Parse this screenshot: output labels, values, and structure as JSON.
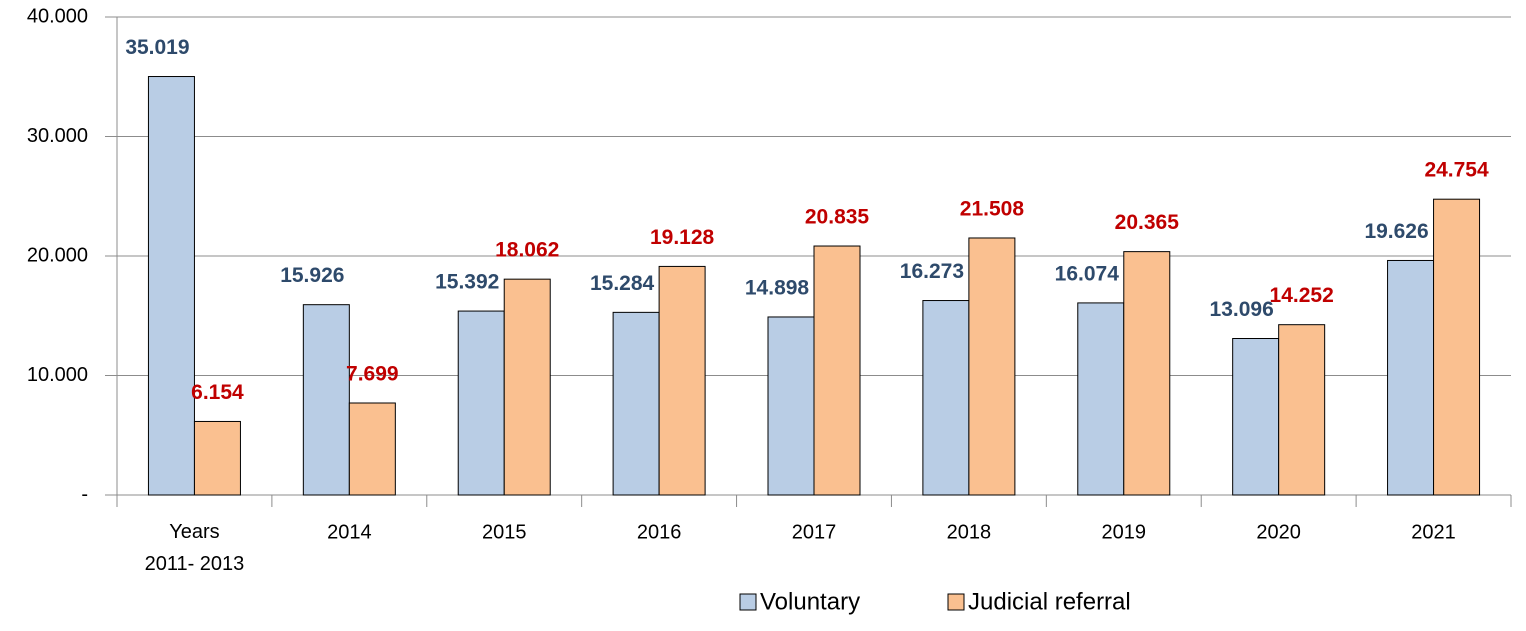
{
  "chart_data": {
    "type": "bar",
    "categories": [
      "Years 2011- 2013",
      "2014",
      "2015",
      "2016",
      "2017",
      "2018",
      "2019",
      "2020",
      "2021"
    ],
    "series": [
      {
        "name": "Voluntary",
        "color": "#b9cde5",
        "label_color": "#2e4a6b",
        "values": [
          35019,
          15926,
          15392,
          15284,
          14898,
          16273,
          16074,
          13096,
          19626
        ],
        "value_labels": [
          "35.019",
          "15.926",
          "15.392",
          "15.284",
          "14.898",
          "16.273",
          "16.074",
          "13.096",
          "19.626"
        ]
      },
      {
        "name": "Judicial referral",
        "color": "#fac090",
        "label_color": "#c00000",
        "values": [
          6154,
          7699,
          18062,
          19128,
          20835,
          21508,
          20365,
          14252,
          24754
        ],
        "value_labels": [
          "6.154",
          "7.699",
          "18.062",
          "19.128",
          "20.835",
          "21.508",
          "20.365",
          "14.252",
          "24.754"
        ]
      }
    ],
    "ylim": [
      0,
      40000
    ],
    "yticks": [
      {
        "value": 0,
        "label": "-"
      },
      {
        "value": 10000,
        "label": "10.000"
      },
      {
        "value": 20000,
        "label": "20.000"
      },
      {
        "value": 30000,
        "label": "30.000"
      },
      {
        "value": 40000,
        "label": "40.000"
      }
    ],
    "grid": true,
    "legend": "bottom"
  }
}
